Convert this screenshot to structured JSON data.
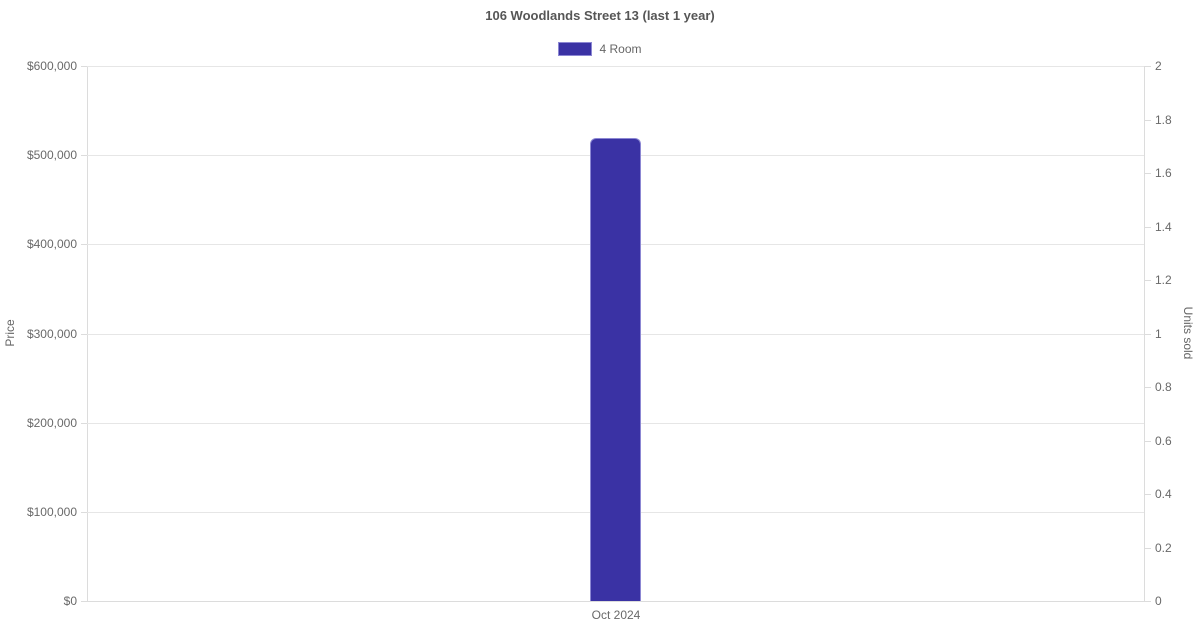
{
  "chart_data": {
    "type": "bar",
    "title": "106 Woodlands Street 13 (last 1 year)",
    "categories": [
      "Oct 2024"
    ],
    "series": [
      {
        "name": "4 Room",
        "axis": "left",
        "values": [
          519000
        ]
      }
    ],
    "y_left": {
      "label": "Price",
      "lim": [
        0,
        600000
      ],
      "tick_step": 100000,
      "tick_labels": [
        "$0",
        "$100,000",
        "$200,000",
        "$300,000",
        "$400,000",
        "$500,000",
        "$600,000"
      ]
    },
    "y_right": {
      "label": "Units sold",
      "lim": [
        0,
        2
      ],
      "tick_step": 0.2,
      "tick_labels": [
        "0",
        "0.2",
        "0.4",
        "0.6",
        "0.8",
        "1",
        "1.2",
        "1.4",
        "1.6",
        "1.8",
        "2"
      ]
    },
    "grid": "horizontal-on",
    "legend_position": "top"
  },
  "colors": {
    "bar_fill": "#3a32a4",
    "bar_border": "#8c87d3",
    "grid": "#e6e6e6",
    "axis_line": "#dcdcdc",
    "text": "#666666",
    "title_text": "#565656"
  }
}
